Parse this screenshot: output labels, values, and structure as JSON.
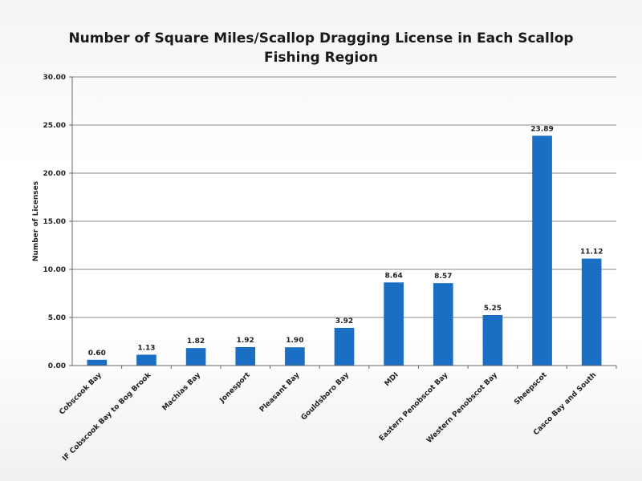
{
  "chart_data": {
    "type": "bar",
    "title_lines": [
      "Number of Square Miles/Scallop Dragging License in Each Scallop",
      "Fishing Region"
    ],
    "ylabel": "Number of Licenses",
    "xlabel": "",
    "ylim": [
      0,
      30
    ],
    "yticks": [
      "0.00",
      "5.00",
      "10.00",
      "15.00",
      "20.00",
      "25.00",
      "30.00"
    ],
    "grid": true,
    "categories": [
      "Cobscook Bay",
      "IF Cobscook Bay to Bog Brook",
      "Machias Bay",
      "Jonesport",
      "Pleasant Bay",
      "Gouldsboro Bay",
      "MDI",
      "Eastern Penobscot Bay",
      "Western Penobscot Bay",
      "Sheepscot",
      "Casco Bay and South"
    ],
    "values": [
      0.6,
      1.13,
      1.82,
      1.92,
      1.9,
      3.92,
      8.64,
      8.57,
      5.25,
      23.89,
      11.12
    ],
    "data_labels": [
      "0.60",
      "1.13",
      "1.82",
      "1.92",
      "1.90",
      "3.92",
      "8.64",
      "8.57",
      "5.25",
      "23.89",
      "11.12"
    ],
    "bar_color": "#1a6fc4"
  }
}
